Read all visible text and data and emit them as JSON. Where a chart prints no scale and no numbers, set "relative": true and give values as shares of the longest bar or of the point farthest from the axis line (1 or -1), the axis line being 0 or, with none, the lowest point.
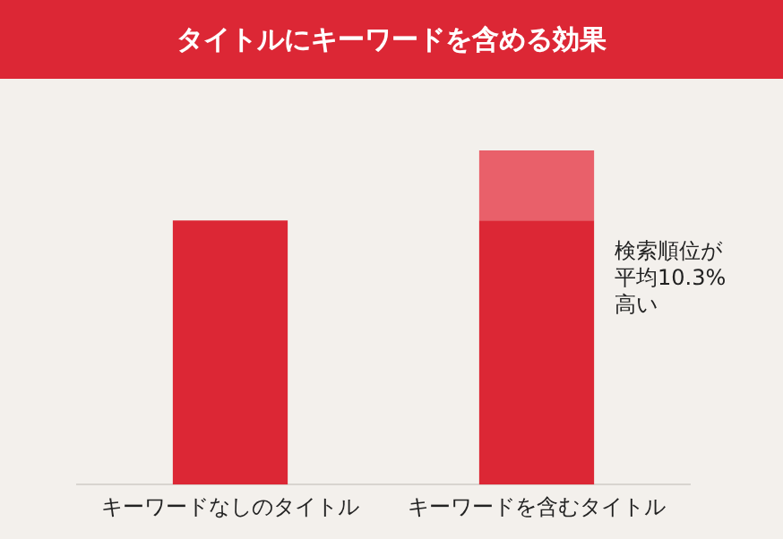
{
  "chart_data": {
    "type": "bar",
    "title": "タイトルにキーワードを含める効果",
    "relative": true,
    "stacked": true,
    "categories": [
      "キーワードなしのタイトル",
      "キーワードを含むタイトル"
    ],
    "series": [
      {
        "color": "#dc2735",
        "values": [
          0.79,
          0.79
        ]
      },
      {
        "color": "#e9606a",
        "values": [
          null,
          0.21
        ]
      }
    ],
    "annotations": [
      "検索順位が平均10.3%高い"
    ],
    "grid": false,
    "legend": false
  }
}
